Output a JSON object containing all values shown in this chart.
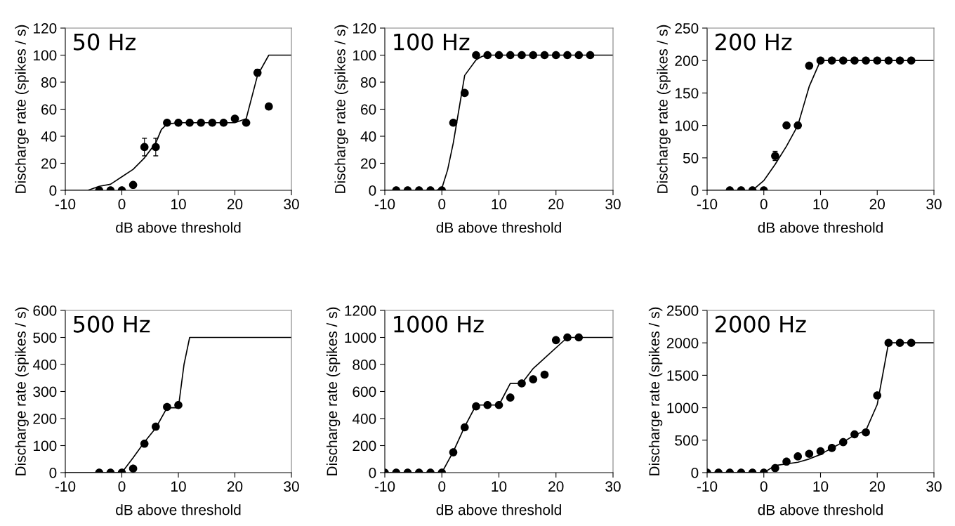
{
  "chart_data": [
    {
      "type": "scatter",
      "title": "50 Hz",
      "xlabel": "dB above threshold",
      "ylabel": "Discharge rate (spikes / s)",
      "xlim": [
        -10,
        30
      ],
      "xticks": [
        -10,
        0,
        10,
        20,
        30
      ],
      "ylim": [
        0,
        120
      ],
      "yticks": [
        0,
        20,
        40,
        60,
        80,
        100,
        120
      ],
      "grid": false,
      "legend": false,
      "series": [
        {
          "type": "scatter",
          "marker": "circle",
          "color": "#000000",
          "x": [
            -4,
            -2,
            0,
            2,
            4,
            6,
            8,
            10,
            12,
            14,
            16,
            18,
            20,
            22,
            24,
            26
          ],
          "values": [
            0,
            0,
            0,
            4,
            32,
            32,
            50,
            50,
            50,
            50,
            50,
            50,
            53,
            50,
            87,
            62
          ],
          "errors": [
            null,
            null,
            null,
            1.5,
            6.5,
            6.5,
            null,
            null,
            null,
            null,
            null,
            null,
            null,
            null,
            2.5,
            2
          ]
        },
        {
          "type": "line",
          "marker": "none",
          "line_style": "solid",
          "color": "#000000",
          "x": [
            -10,
            -6,
            -4,
            -2,
            0,
            2,
            4,
            6,
            7,
            8,
            10,
            20,
            22,
            24,
            26,
            30
          ],
          "values": [
            0,
            0,
            3,
            4.5,
            10,
            15.5,
            24,
            35,
            45,
            49,
            50,
            50,
            53,
            85,
            100,
            100
          ]
        }
      ]
    },
    {
      "type": "scatter",
      "title": "100 Hz",
      "xlabel": "dB above threshold",
      "ylabel": "Discharge rate (spikes / s)",
      "xlim": [
        -10,
        30
      ],
      "xticks": [
        -10,
        0,
        10,
        20,
        30
      ],
      "ylim": [
        0,
        120
      ],
      "yticks": [
        0,
        20,
        40,
        60,
        80,
        100,
        120
      ],
      "grid": false,
      "legend": false,
      "series": [
        {
          "type": "scatter",
          "marker": "circle",
          "color": "#000000",
          "x": [
            -8,
            -6,
            -4,
            -2,
            0,
            2,
            4,
            6,
            8,
            10,
            12,
            14,
            16,
            18,
            20,
            22,
            24,
            26
          ],
          "values": [
            0,
            0,
            0,
            0,
            0,
            50,
            72,
            100,
            100,
            100,
            100,
            100,
            100,
            100,
            100,
            100,
            100,
            100
          ]
        },
        {
          "type": "line",
          "marker": "none",
          "line_style": "solid",
          "color": "#000000",
          "x": [
            -10,
            -1,
            0,
            1,
            2,
            3,
            4,
            6,
            7,
            8,
            30
          ],
          "values": [
            0,
            0,
            1.5,
            15,
            35,
            60,
            85,
            96.5,
            99,
            100,
            100
          ]
        }
      ]
    },
    {
      "type": "scatter",
      "title": "200 Hz",
      "xlabel": "dB above threshold",
      "ylabel": "Discharge rate (spikes / s)",
      "xlim": [
        -10,
        30
      ],
      "xticks": [
        -10,
        0,
        10,
        20,
        30
      ],
      "ylim": [
        0,
        250
      ],
      "yticks": [
        0,
        50,
        100,
        150,
        200,
        250
      ],
      "grid": false,
      "legend": false,
      "series": [
        {
          "type": "scatter",
          "marker": "circle",
          "color": "#000000",
          "x": [
            -6,
            -4,
            -2,
            0,
            2,
            4,
            6,
            8,
            10,
            12,
            14,
            16,
            18,
            20,
            22,
            24,
            26
          ],
          "values": [
            0,
            0,
            0,
            0,
            53,
            100,
            100,
            192,
            200,
            200,
            200,
            200,
            200,
            200,
            200,
            200,
            200
          ],
          "errors": [
            null,
            null,
            null,
            null,
            7,
            null,
            null,
            null,
            null,
            null,
            null,
            null,
            null,
            null,
            null,
            null,
            null
          ]
        },
        {
          "type": "line",
          "marker": "none",
          "line_style": "solid",
          "color": "#000000",
          "x": [
            -10,
            -2,
            0,
            2,
            4,
            6,
            7,
            8,
            10,
            30
          ],
          "values": [
            0,
            0,
            15,
            40,
            68,
            100,
            130,
            160,
            200,
            200
          ]
        }
      ]
    },
    {
      "type": "scatter",
      "title": "500 Hz",
      "xlabel": "dB above threshold",
      "ylabel": "Discharge rate (spikes / s)",
      "xlim": [
        -10,
        30
      ],
      "xticks": [
        -10,
        0,
        10,
        20,
        30
      ],
      "ylim": [
        0,
        600
      ],
      "yticks": [
        0,
        100,
        200,
        300,
        400,
        500,
        600
      ],
      "grid": false,
      "legend": false,
      "series": [
        {
          "type": "scatter",
          "marker": "circle",
          "color": "#000000",
          "x": [
            -4,
            -2,
            0,
            2,
            4,
            6,
            8,
            10
          ],
          "values": [
            0,
            0,
            0,
            15,
            107,
            170,
            243,
            250
          ]
        },
        {
          "type": "line",
          "marker": "none",
          "line_style": "solid",
          "color": "#000000",
          "x": [
            -10,
            0,
            2,
            4,
            6,
            8,
            10,
            11,
            12,
            14,
            30
          ],
          "values": [
            0,
            0,
            55,
            113,
            165,
            240,
            240,
            400,
            500,
            500,
            500
          ]
        }
      ]
    },
    {
      "type": "scatter",
      "title": "1000 Hz",
      "xlabel": "dB above threshold",
      "ylabel": "Discharge rate (spikes / s)",
      "xlim": [
        -10,
        30
      ],
      "xticks": [
        -10,
        0,
        10,
        20,
        30
      ],
      "ylim": [
        0,
        1200
      ],
      "yticks": [
        0,
        200,
        400,
        600,
        800,
        1000,
        1200
      ],
      "grid": false,
      "legend": false,
      "series": [
        {
          "type": "scatter",
          "marker": "circle",
          "color": "#000000",
          "x": [
            -10,
            -8,
            -6,
            -4,
            -2,
            0,
            2,
            4,
            6,
            8,
            10,
            12,
            14,
            16,
            18,
            20,
            22,
            24
          ],
          "values": [
            0,
            0,
            0,
            0,
            0,
            0,
            150,
            335,
            490,
            500,
            500,
            555,
            660,
            690,
            725,
            980,
            1000,
            1000
          ]
        },
        {
          "type": "line",
          "marker": "none",
          "line_style": "solid",
          "color": "#000000",
          "x": [
            -10,
            0,
            2,
            4,
            6,
            10,
            12,
            14,
            16,
            22,
            30
          ],
          "values": [
            0,
            0,
            155,
            340,
            500,
            500,
            660,
            660,
            770,
            1000,
            1000
          ]
        }
      ]
    },
    {
      "type": "scatter",
      "title": "2000 Hz",
      "xlabel": "dB above threshold",
      "ylabel": "Discharge rate (spikes / s)",
      "xlim": [
        -10,
        30
      ],
      "xticks": [
        -10,
        0,
        10,
        20,
        30
      ],
      "ylim": [
        0,
        2500
      ],
      "yticks": [
        0,
        500,
        1000,
        1500,
        2000,
        2500
      ],
      "grid": false,
      "legend": false,
      "series": [
        {
          "type": "scatter",
          "marker": "circle",
          "color": "#000000",
          "x": [
            -10,
            -8,
            -6,
            -4,
            -2,
            0,
            2,
            4,
            6,
            8,
            10,
            12,
            14,
            16,
            18,
            20,
            22,
            24,
            26
          ],
          "values": [
            0,
            0,
            0,
            0,
            0,
            0,
            70,
            170,
            250,
            290,
            330,
            380,
            470,
            590,
            620,
            1190,
            2000,
            2000,
            2000
          ]
        },
        {
          "type": "line",
          "marker": "none",
          "line_style": "solid",
          "color": "#000000",
          "x": [
            -10,
            0,
            2,
            6,
            8,
            10,
            12,
            14,
            16,
            18,
            20,
            22,
            30
          ],
          "values": [
            0,
            0,
            110,
            160,
            210,
            280,
            380,
            470,
            580,
            650,
            1050,
            2000,
            2000
          ]
        }
      ]
    }
  ]
}
